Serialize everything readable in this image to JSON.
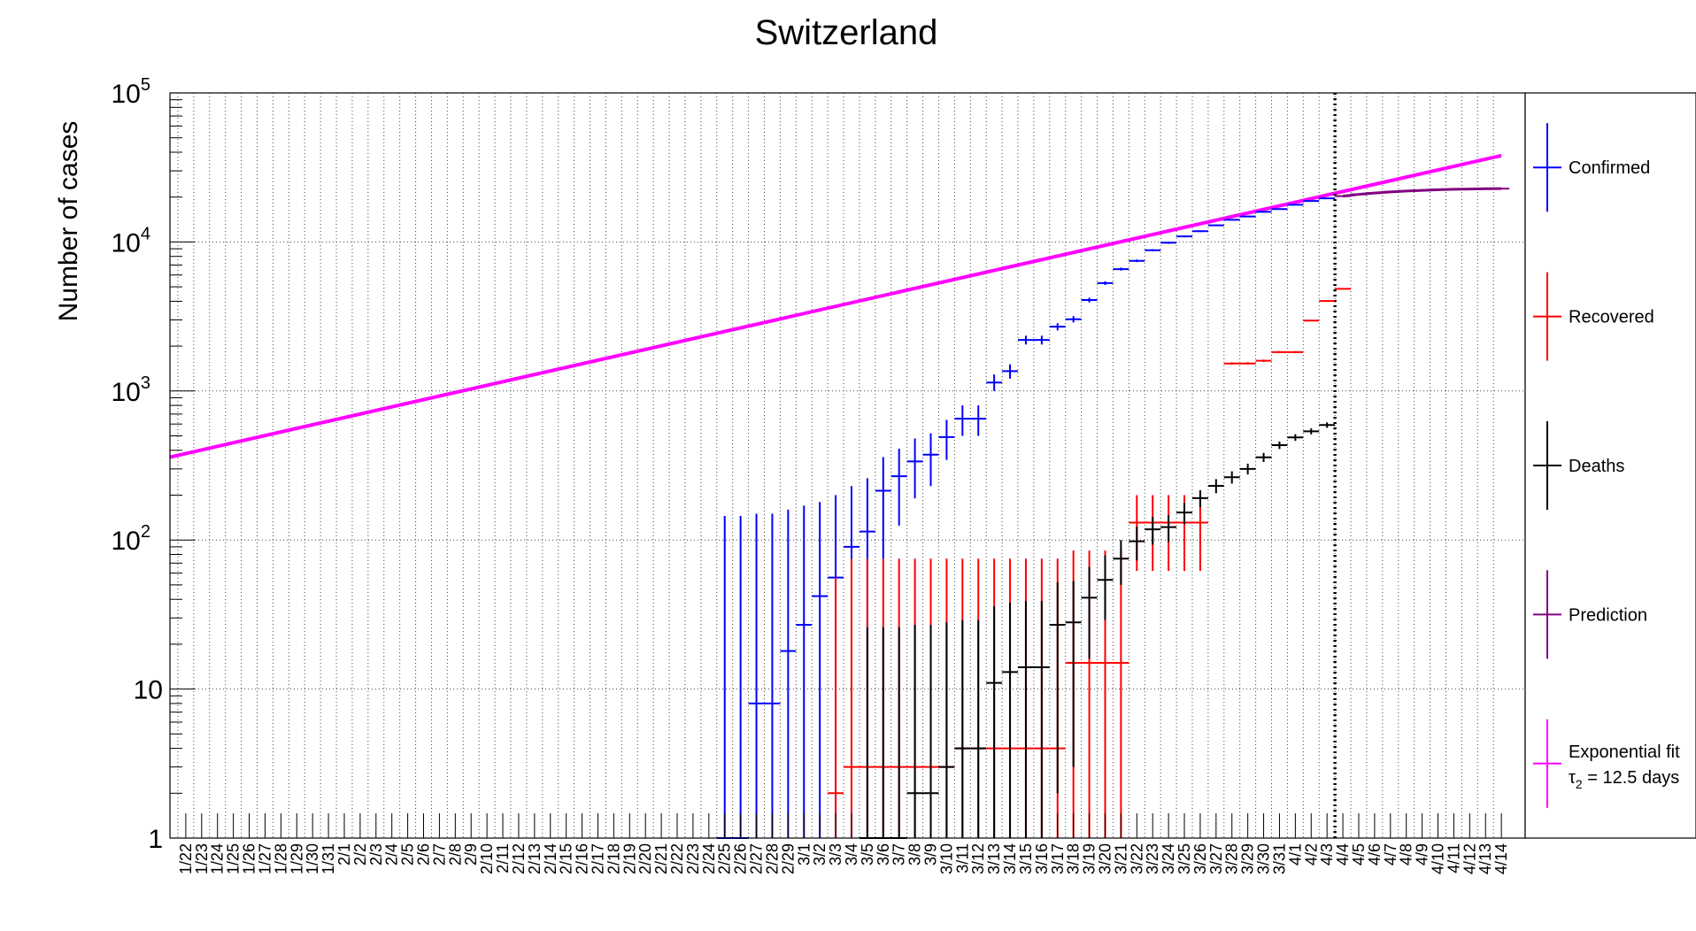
{
  "chart_data": {
    "type": "scatter",
    "title": "Switzerland",
    "xlabel": "",
    "ylabel": "Number of cases",
    "yscale": "log",
    "ylim": [
      1,
      100000
    ],
    "grid": true,
    "legend_position": "right",
    "prediction_boundary_date": "4/3",
    "y_ticks": [
      {
        "value": 1,
        "label": "1",
        "exp": ""
      },
      {
        "value": 10,
        "label": "10",
        "exp": ""
      },
      {
        "value": 100,
        "label": "10",
        "exp": "2"
      },
      {
        "value": 1000,
        "label": "10",
        "exp": "3"
      },
      {
        "value": 10000,
        "label": "10",
        "exp": "4"
      },
      {
        "value": 100000,
        "label": "10",
        "exp": "5"
      }
    ],
    "dates": [
      "1/22",
      "1/23",
      "1/24",
      "1/25",
      "1/26",
      "1/27",
      "1/28",
      "1/29",
      "1/30",
      "1/31",
      "2/1",
      "2/2",
      "2/3",
      "2/4",
      "2/5",
      "2/6",
      "2/7",
      "2/8",
      "2/9",
      "2/10",
      "2/11",
      "2/12",
      "2/13",
      "2/14",
      "2/15",
      "2/16",
      "2/17",
      "2/18",
      "2/19",
      "2/20",
      "2/21",
      "2/22",
      "2/23",
      "2/24",
      "2/25",
      "2/26",
      "2/27",
      "2/28",
      "2/29",
      "3/1",
      "3/2",
      "3/3",
      "3/4",
      "3/5",
      "3/6",
      "3/7",
      "3/8",
      "3/9",
      "3/10",
      "3/11",
      "3/12",
      "3/13",
      "3/14",
      "3/15",
      "3/16",
      "3/17",
      "3/18",
      "3/19",
      "3/20",
      "3/21",
      "3/22",
      "3/23",
      "3/24",
      "3/25",
      "3/26",
      "3/27",
      "3/28",
      "3/29",
      "3/30",
      "3/31",
      "4/1",
      "4/2",
      "4/3",
      "4/4",
      "4/5",
      "4/6",
      "4/7",
      "4/8",
      "4/9",
      "4/10",
      "4/11",
      "4/12",
      "4/13",
      "4/14"
    ],
    "series": [
      {
        "name": "Confirmed",
        "color": "#0000ff",
        "points": [
          {
            "x": "2/25",
            "y": 1,
            "lo": 1,
            "hi": 145
          },
          {
            "x": "2/26",
            "y": 1,
            "lo": 1,
            "hi": 145
          },
          {
            "x": "2/27",
            "y": 8,
            "lo": 1,
            "hi": 150
          },
          {
            "x": "2/28",
            "y": 8,
            "lo": 1,
            "hi": 150
          },
          {
            "x": "2/29",
            "y": 18,
            "lo": 1,
            "hi": 160
          },
          {
            "x": "3/1",
            "y": 27,
            "lo": 1,
            "hi": 170
          },
          {
            "x": "3/2",
            "y": 42,
            "lo": 1,
            "hi": 180
          },
          {
            "x": "3/3",
            "y": 56,
            "lo": 1,
            "hi": 200
          },
          {
            "x": "3/4",
            "y": 90,
            "lo": 1,
            "hi": 230
          },
          {
            "x": "3/5",
            "y": 114,
            "lo": 1,
            "hi": 260
          },
          {
            "x": "3/6",
            "y": 214,
            "lo": 75,
            "hi": 360
          },
          {
            "x": "3/7",
            "y": 268,
            "lo": 125,
            "hi": 410
          },
          {
            "x": "3/8",
            "y": 337,
            "lo": 190,
            "hi": 480
          },
          {
            "x": "3/9",
            "y": 374,
            "lo": 230,
            "hi": 520
          },
          {
            "x": "3/10",
            "y": 491,
            "lo": 345,
            "hi": 640
          },
          {
            "x": "3/11",
            "y": 652,
            "lo": 500,
            "hi": 800
          },
          {
            "x": "3/12",
            "y": 652,
            "lo": 500,
            "hi": 800
          },
          {
            "x": "3/13",
            "y": 1139,
            "lo": 1000,
            "hi": 1290
          },
          {
            "x": "3/14",
            "y": 1359,
            "lo": 1210,
            "hi": 1510
          },
          {
            "x": "3/15",
            "y": 2200,
            "lo": 2050,
            "hi": 2350
          },
          {
            "x": "3/16",
            "y": 2200,
            "lo": 2050,
            "hi": 2350
          },
          {
            "x": "3/17",
            "y": 2700,
            "lo": 2550,
            "hi": 2850
          },
          {
            "x": "3/18",
            "y": 3028,
            "lo": 2880,
            "hi": 3180
          },
          {
            "x": "3/19",
            "y": 4075,
            "lo": 3925,
            "hi": 4225
          },
          {
            "x": "3/20",
            "y": 5294,
            "lo": 5145,
            "hi": 5445
          },
          {
            "x": "3/21",
            "y": 6575,
            "lo": 6425,
            "hi": 6725
          },
          {
            "x": "3/22",
            "y": 7474,
            "lo": 7325,
            "hi": 7625
          },
          {
            "x": "3/23",
            "y": 8795,
            "lo": 8645,
            "hi": 8945
          },
          {
            "x": "3/24",
            "y": 9877,
            "lo": 9727,
            "hi": 10027
          },
          {
            "x": "3/25",
            "y": 10897,
            "lo": 10747,
            "hi": 11047
          },
          {
            "x": "3/26",
            "y": 11811,
            "lo": 11661,
            "hi": 11961
          },
          {
            "x": "3/27",
            "y": 12928,
            "lo": 12778,
            "hi": 13078
          },
          {
            "x": "3/28",
            "y": 14076,
            "lo": 13926,
            "hi": 14226
          },
          {
            "x": "3/29",
            "y": 14829,
            "lo": 14679,
            "hi": 14979
          },
          {
            "x": "3/30",
            "y": 15922,
            "lo": 15772,
            "hi": 16072
          },
          {
            "x": "3/31",
            "y": 16605,
            "lo": 16455,
            "hi": 16755
          },
          {
            "x": "4/1",
            "y": 17768,
            "lo": 17618,
            "hi": 17918
          },
          {
            "x": "4/2",
            "y": 18827,
            "lo": 18677,
            "hi": 18977
          },
          {
            "x": "4/3",
            "y": 19606,
            "lo": 19456,
            "hi": 19756
          }
        ]
      },
      {
        "name": "Recovered",
        "color": "#ff0000",
        "points": [
          {
            "x": "3/3",
            "y": 2,
            "lo": 1,
            "hi": 56
          },
          {
            "x": "3/4",
            "y": 3,
            "lo": 1,
            "hi": 75
          },
          {
            "x": "3/5",
            "y": 3,
            "lo": 1,
            "hi": 75
          },
          {
            "x": "3/6",
            "y": 3,
            "lo": 1,
            "hi": 75
          },
          {
            "x": "3/7",
            "y": 3,
            "lo": 1,
            "hi": 75
          },
          {
            "x": "3/8",
            "y": 3,
            "lo": 1,
            "hi": 75
          },
          {
            "x": "3/9",
            "y": 3,
            "lo": 1,
            "hi": 75
          },
          {
            "x": "3/10",
            "y": 3,
            "lo": 1,
            "hi": 75
          },
          {
            "x": "3/11",
            "y": 4,
            "lo": 1,
            "hi": 75
          },
          {
            "x": "3/12",
            "y": 4,
            "lo": 1,
            "hi": 75
          },
          {
            "x": "3/13",
            "y": 4,
            "lo": 1,
            "hi": 75
          },
          {
            "x": "3/14",
            "y": 4,
            "lo": 1,
            "hi": 75
          },
          {
            "x": "3/15",
            "y": 4,
            "lo": 1,
            "hi": 75
          },
          {
            "x": "3/16",
            "y": 4,
            "lo": 1,
            "hi": 75
          },
          {
            "x": "3/17",
            "y": 4,
            "lo": 1,
            "hi": 75
          },
          {
            "x": "3/18",
            "y": 15,
            "lo": 1,
            "hi": 85
          },
          {
            "x": "3/19",
            "y": 15,
            "lo": 1,
            "hi": 85
          },
          {
            "x": "3/20",
            "y": 15,
            "lo": 1,
            "hi": 85
          },
          {
            "x": "3/21",
            "y": 15,
            "lo": 1,
            "hi": 85
          },
          {
            "x": "3/22",
            "y": 131,
            "lo": 62,
            "hi": 200
          },
          {
            "x": "3/23",
            "y": 131,
            "lo": 62,
            "hi": 200
          },
          {
            "x": "3/24",
            "y": 131,
            "lo": 62,
            "hi": 200
          },
          {
            "x": "3/25",
            "y": 131,
            "lo": 62,
            "hi": 200
          },
          {
            "x": "3/26",
            "y": 131,
            "lo": 62,
            "hi": 200
          },
          {
            "x": "3/28",
            "y": 1530,
            "lo": 1500,
            "hi": 1560
          },
          {
            "x": "3/29",
            "y": 1530,
            "lo": 1500,
            "hi": 1560
          },
          {
            "x": "3/30",
            "y": 1595,
            "lo": 1565,
            "hi": 1625
          },
          {
            "x": "3/31",
            "y": 1823,
            "lo": 1793,
            "hi": 1853
          },
          {
            "x": "4/1",
            "y": 1823,
            "lo": 1793,
            "hi": 1853
          },
          {
            "x": "4/2",
            "y": 2967,
            "lo": 2937,
            "hi": 2997
          },
          {
            "x": "4/3",
            "y": 4013,
            "lo": 3983,
            "hi": 4043
          },
          {
            "x": "4/4",
            "y": 4846,
            "lo": 4816,
            "hi": 4876
          }
        ]
      },
      {
        "name": "Deaths",
        "color": "#000000",
        "points": [
          {
            "x": "3/5",
            "y": 1,
            "lo": 1,
            "hi": 26
          },
          {
            "x": "3/6",
            "y": 1,
            "lo": 1,
            "hi": 26
          },
          {
            "x": "3/7",
            "y": 1,
            "lo": 1,
            "hi": 26
          },
          {
            "x": "3/8",
            "y": 2,
            "lo": 1,
            "hi": 27
          },
          {
            "x": "3/9",
            "y": 2,
            "lo": 1,
            "hi": 27
          },
          {
            "x": "3/10",
            "y": 3,
            "lo": 1,
            "hi": 28
          },
          {
            "x": "3/11",
            "y": 4,
            "lo": 1,
            "hi": 29
          },
          {
            "x": "3/12",
            "y": 4,
            "lo": 1,
            "hi": 29
          },
          {
            "x": "3/13",
            "y": 11,
            "lo": 1,
            "hi": 36
          },
          {
            "x": "3/14",
            "y": 13,
            "lo": 1,
            "hi": 38
          },
          {
            "x": "3/15",
            "y": 14,
            "lo": 1,
            "hi": 39
          },
          {
            "x": "3/16",
            "y": 14,
            "lo": 1,
            "hi": 39
          },
          {
            "x": "3/17",
            "y": 27,
            "lo": 2,
            "hi": 52
          },
          {
            "x": "3/18",
            "y": 28,
            "lo": 3,
            "hi": 53
          },
          {
            "x": "3/19",
            "y": 41,
            "lo": 16,
            "hi": 66
          },
          {
            "x": "3/20",
            "y": 54,
            "lo": 29,
            "hi": 79
          },
          {
            "x": "3/21",
            "y": 75,
            "lo": 50,
            "hi": 100
          },
          {
            "x": "3/22",
            "y": 98,
            "lo": 73,
            "hi": 123
          },
          {
            "x": "3/23",
            "y": 118,
            "lo": 93,
            "hi": 143
          },
          {
            "x": "3/24",
            "y": 122,
            "lo": 97,
            "hi": 147
          },
          {
            "x": "3/25",
            "y": 153,
            "lo": 128,
            "hi": 178
          },
          {
            "x": "3/26",
            "y": 191,
            "lo": 166,
            "hi": 216
          },
          {
            "x": "3/27",
            "y": 231,
            "lo": 206,
            "hi": 256
          },
          {
            "x": "3/28",
            "y": 264,
            "lo": 239,
            "hi": 289
          },
          {
            "x": "3/29",
            "y": 300,
            "lo": 275,
            "hi": 325
          },
          {
            "x": "3/30",
            "y": 359,
            "lo": 334,
            "hi": 384
          },
          {
            "x": "3/31",
            "y": 433,
            "lo": 408,
            "hi": 458
          },
          {
            "x": "4/1",
            "y": 488,
            "lo": 463,
            "hi": 513
          },
          {
            "x": "4/2",
            "y": 536,
            "lo": 511,
            "hi": 561
          },
          {
            "x": "4/3",
            "y": 591,
            "lo": 566,
            "hi": 616
          }
        ]
      },
      {
        "name": "Prediction",
        "color": "#800080",
        "points": [
          {
            "x": "4/4",
            "y": 20300
          },
          {
            "x": "4/5",
            "y": 20850
          },
          {
            "x": "4/6",
            "y": 21300
          },
          {
            "x": "4/7",
            "y": 21650
          },
          {
            "x": "4/8",
            "y": 21950
          },
          {
            "x": "4/9",
            "y": 22200
          },
          {
            "x": "4/10",
            "y": 22400
          },
          {
            "x": "4/11",
            "y": 22550
          },
          {
            "x": "4/12",
            "y": 22650
          },
          {
            "x": "4/13",
            "y": 22750
          },
          {
            "x": "4/14",
            "y": 22800
          }
        ]
      }
    ],
    "fit": {
      "name": "Exponential fit",
      "tau_label": "τ",
      "tau_sub": "2",
      "tau_value": " = 12.5 days",
      "color": "#ff00ff",
      "start_value": 360,
      "end_value": 38000
    },
    "legend": [
      {
        "label": "Confirmed",
        "color": "#0000ff"
      },
      {
        "label": "Recovered",
        "color": "#ff0000"
      },
      {
        "label": "Deaths",
        "color": "#000000"
      },
      {
        "label": "Prediction",
        "color": "#800080"
      },
      {
        "label": "Exponential fit",
        "color": "#ff00ff"
      }
    ]
  }
}
